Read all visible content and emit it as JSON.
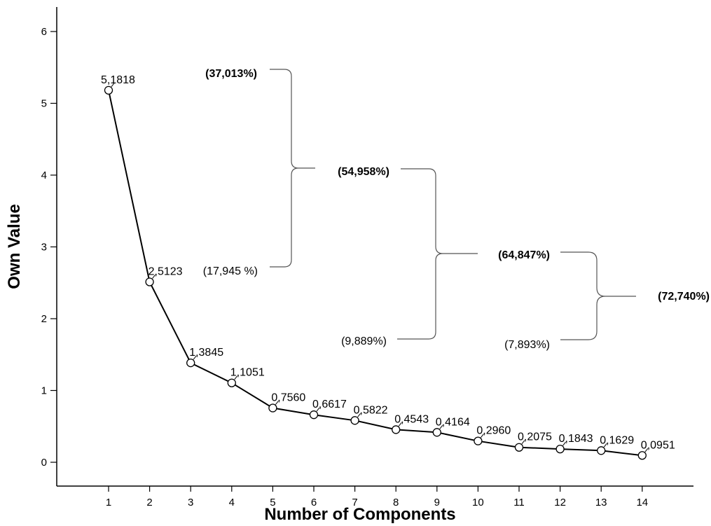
{
  "chart_data": {
    "type": "line",
    "xlabel": "Number of Components",
    "ylabel": "Own Value",
    "x": [
      1,
      2,
      3,
      4,
      5,
      6,
      7,
      8,
      9,
      10,
      11,
      12,
      13,
      14
    ],
    "series": [
      {
        "values": [
          5.1818,
          2.5123,
          1.3845,
          1.1051,
          0.756,
          0.6617,
          0.5822,
          0.4543,
          0.4164,
          0.296,
          0.2075,
          0.1843,
          0.1629,
          0.0951
        ]
      }
    ],
    "data_labels": [
      "5,1818",
      "2,5123",
      "1,3845",
      "1,1051",
      "0,7560",
      "0,6617",
      "0,5822",
      "0,4543",
      "0,4164",
      "0,2960",
      "0,2075",
      "0,1843",
      "0,1629",
      "0,0951"
    ],
    "x_ticks": [
      "1",
      "2",
      "3",
      "4",
      "5",
      "6",
      "7",
      "8",
      "9",
      "10",
      "11",
      "12",
      "13",
      "14"
    ],
    "y_ticks": [
      "0",
      "1",
      "2",
      "3",
      "4",
      "5",
      "6"
    ],
    "ylim": [
      0,
      6
    ],
    "grid": false,
    "marker": "open-circle",
    "line_color": "#000000",
    "annotations": {
      "pct_1": "(37,013%)",
      "pct_2": "(17,945 %)",
      "cum_2": "(54,958%)",
      "pct_3": "(9,889%)",
      "cum_3": "(64,847%)",
      "pct_4": "(7,893%)",
      "cum_4": "(72,740%)"
    }
  }
}
